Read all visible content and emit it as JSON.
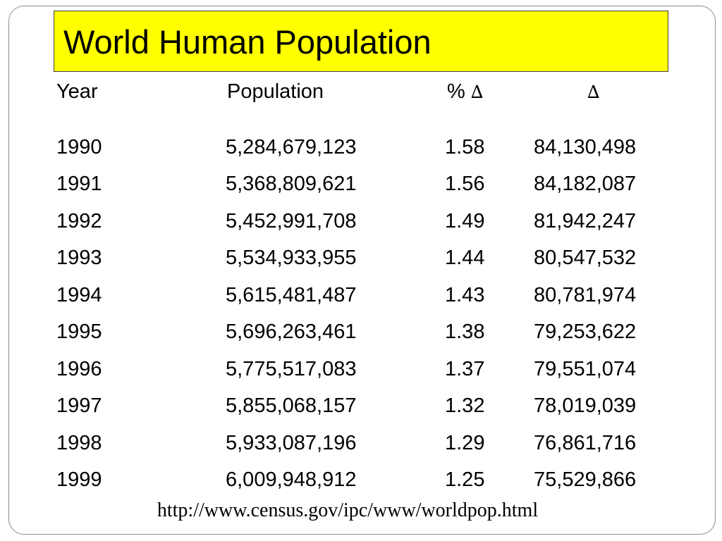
{
  "slide": {
    "title": "World Human Population",
    "title_background": "#ffff00",
    "headers": {
      "year": "Year",
      "population": "Population",
      "pct_prefix": "%",
      "delta_symbol": "∆"
    },
    "rows": [
      {
        "year": "1990",
        "population": "5,284,679,123",
        "pct_change": "1.58",
        "change": "84,130,498"
      },
      {
        "year": "1991",
        "population": "5,368,809,621",
        "pct_change": "1.56",
        "change": "84,182,087"
      },
      {
        "year": "1992",
        "population": "5,452,991,708",
        "pct_change": "1.49",
        "change": "81,942,247"
      },
      {
        "year": "1993",
        "population": "5,534,933,955",
        "pct_change": "1.44",
        "change": "80,547,532"
      },
      {
        "year": "1994",
        "population": "5,615,481,487",
        "pct_change": "1.43",
        "change": "80,781,974"
      },
      {
        "year": "1995",
        "population": "5,696,263,461",
        "pct_change": "1.38",
        "change": "79,253,622"
      },
      {
        "year": "1996",
        "population": "5,775,517,083",
        "pct_change": "1.37",
        "change": "79,551,074"
      },
      {
        "year": "1997",
        "population": "5,855,068,157",
        "pct_change": "1.32",
        "change": "78,019,039"
      },
      {
        "year": "1998",
        "population": "5,933,087,196",
        "pct_change": "1.29",
        "change": "76,861,716"
      },
      {
        "year": "1999",
        "population": "6,009,948,912",
        "pct_change": "1.25",
        "change": "75,529,866"
      }
    ],
    "source_url": "http://www.census.gov/ipc/www/worldpop.html"
  }
}
